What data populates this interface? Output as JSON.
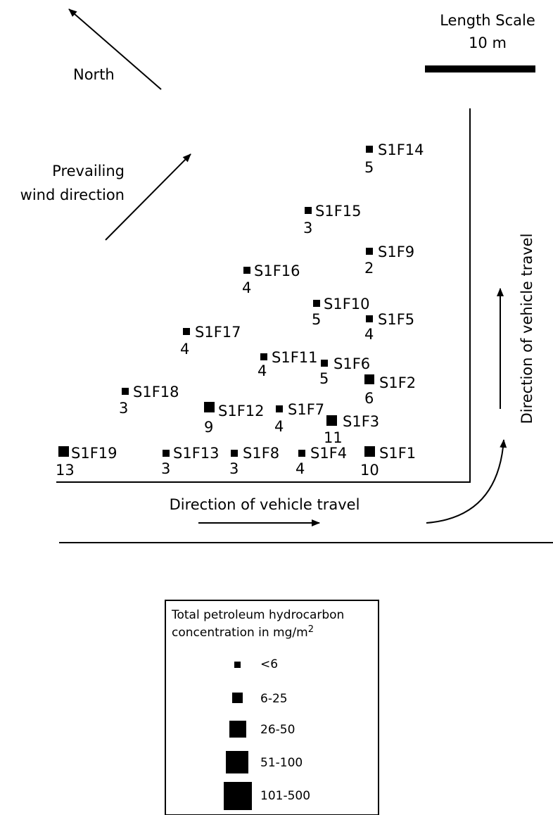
{
  "north": {
    "label": "North"
  },
  "scale": {
    "title": "Length Scale",
    "length": "10 m"
  },
  "wind": {
    "line1": "Prevailing",
    "line2": "wind direction"
  },
  "vehicle_travel_horizontal": "Direction of vehicle travel",
  "vehicle_travel_vertical": "Direction of vehicle travel",
  "sites": [
    {
      "id": "S1F14",
      "value": "5"
    },
    {
      "id": "S1F15",
      "value": "3"
    },
    {
      "id": "S1F9",
      "value": "2"
    },
    {
      "id": "S1F16",
      "value": "4"
    },
    {
      "id": "S1F10",
      "value": "5"
    },
    {
      "id": "S1F5",
      "value": "4"
    },
    {
      "id": "S1F17",
      "value": "4"
    },
    {
      "id": "S1F11",
      "value": "4"
    },
    {
      "id": "S1F6",
      "value": "5"
    },
    {
      "id": "S1F2",
      "value": "6"
    },
    {
      "id": "S1F18",
      "value": "3"
    },
    {
      "id": "S1F12",
      "value": "9"
    },
    {
      "id": "S1F7",
      "value": "4"
    },
    {
      "id": "S1F3",
      "value": "11"
    },
    {
      "id": "S1F19",
      "value": "13"
    },
    {
      "id": "S1F13",
      "value": "3"
    },
    {
      "id": "S1F8",
      "value": "3"
    },
    {
      "id": "S1F4",
      "value": "4"
    },
    {
      "id": "S1F1",
      "value": "10"
    }
  ],
  "legend": {
    "title_line1": "Total petroleum hydrocarbon",
    "title_line2": "concentration in mg/m",
    "title_superscript": "2",
    "classes": [
      "<6",
      "6-25",
      "26-50",
      "51-100",
      "101-500"
    ]
  }
}
